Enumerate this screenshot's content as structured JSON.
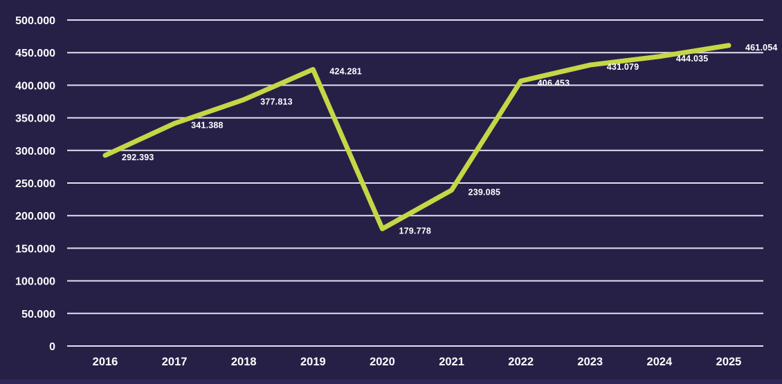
{
  "chart_data": {
    "type": "line",
    "title": "",
    "xlabel": "",
    "ylabel": "",
    "categories": [
      "2016",
      "2017",
      "2018",
      "2019",
      "2020",
      "2021",
      "2022",
      "2023",
      "2024",
      "2025"
    ],
    "series": [
      {
        "name": "series-1",
        "values": [
          292393,
          341388,
          377813,
          424281,
          179778,
          239085,
          406453,
          431079,
          444035,
          461054
        ],
        "labels": [
          "292.393",
          "341.388",
          "377.813",
          "424.281",
          "179.778",
          "239.085",
          "406.453",
          "431.079",
          "444.035",
          "461.054"
        ]
      }
    ],
    "y_axis": {
      "tick_labels": [
        "500.000",
        "450.000",
        "400.000",
        "350.000",
        "300.000",
        "250.000",
        "200.000",
        "150.000",
        "100.000",
        "50.000",
        "0"
      ],
      "tick_values": [
        500000,
        450000,
        400000,
        350000,
        300000,
        250000,
        200000,
        150000,
        100000,
        50000,
        0
      ]
    },
    "ylim": [
      0,
      500000
    ],
    "grid": "horizontal",
    "legend": "none",
    "colors": {
      "background": "#262047",
      "bottom_strip": "#2e2755",
      "line": "#c6d746",
      "gridline": "#e3e1f0",
      "text": "#ffffff"
    }
  }
}
